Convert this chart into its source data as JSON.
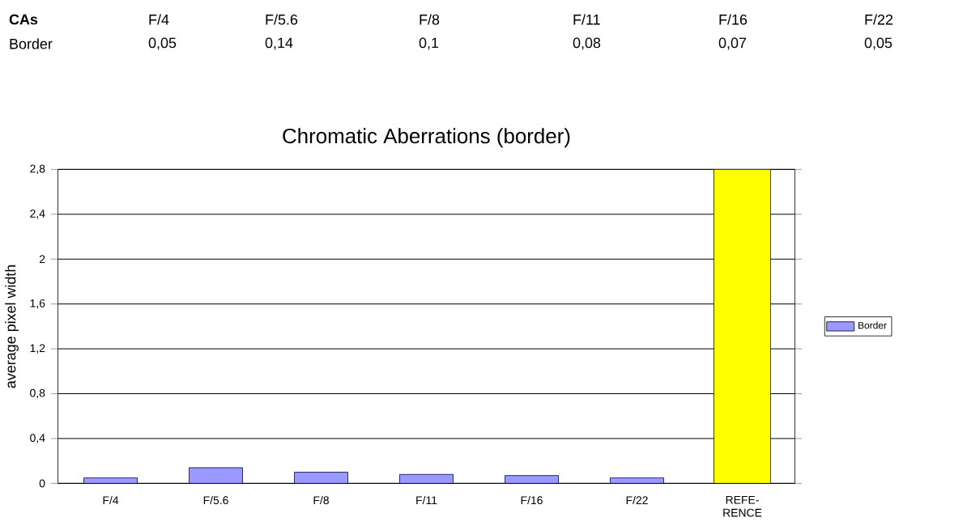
{
  "chart_data": {
    "type": "bar",
    "title": "Chromatic Aberrations (border)",
    "ylabel": "average pixel width",
    "categories": [
      "F/4",
      "F/5.6",
      "F/8",
      "F/11",
      "F/16",
      "F/22",
      "REFE-RENCE"
    ],
    "series": [
      {
        "name": "Border",
        "color": "#9999ff",
        "values": [
          0.05,
          0.14,
          0.1,
          0.08,
          0.07,
          0.05,
          null
        ]
      },
      {
        "color": "#ffff00",
        "values": [
          null,
          null,
          null,
          null,
          null,
          null,
          2.8
        ]
      }
    ],
    "value_labels": [
      "0,05",
      "0,14",
      "0,1",
      "0,08",
      "0,07",
      "0,05",
      null
    ],
    "annotations": [
      "CAs"
    ],
    "ylim": [
      0,
      2.8
    ],
    "yticks": [
      {
        "value": 0,
        "label": "0"
      },
      {
        "value": 0.4,
        "label": "0,4"
      },
      {
        "value": 0.8,
        "label": "0,8"
      },
      {
        "value": 1.2,
        "label": "1,2"
      },
      {
        "value": 1.6,
        "label": "1,6"
      },
      {
        "value": 2,
        "label": "2"
      },
      {
        "value": 2.4,
        "label": "2,4"
      },
      {
        "value": 2.8,
        "label": "2,8"
      }
    ],
    "grid": "y",
    "legend": "right"
  }
}
